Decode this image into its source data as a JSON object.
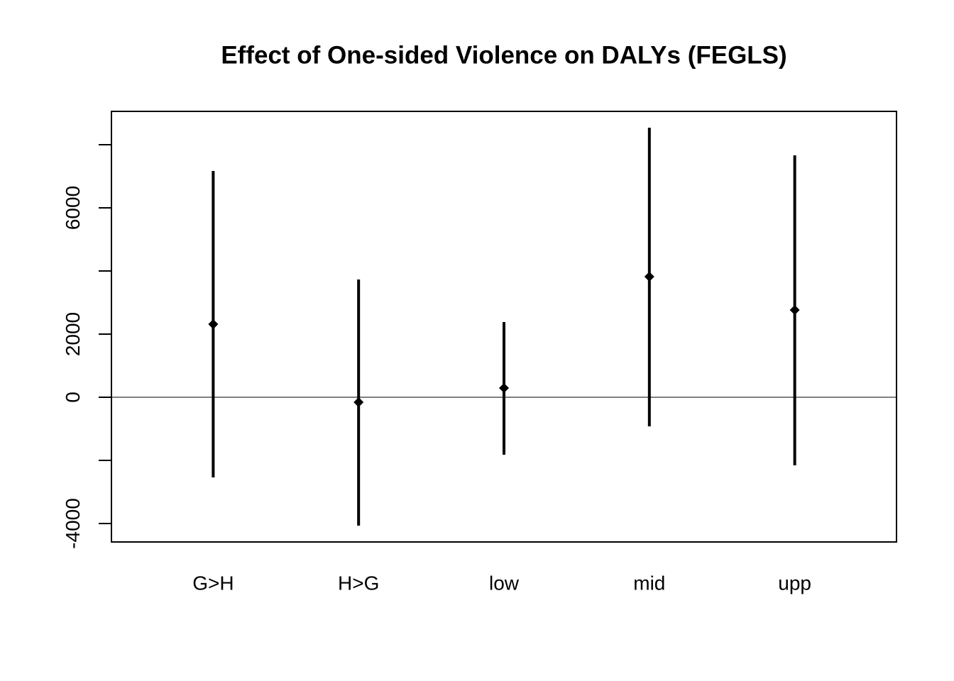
{
  "chart_data": {
    "type": "errorbar",
    "title": "Effect of One-sided Violence on DALYs (FEGLS)",
    "categories": [
      "G>H",
      "H>G",
      "low",
      "mid",
      "upp"
    ],
    "values": [
      2315,
      -157,
      292,
      3820,
      2764
    ],
    "lower": [
      -2539,
      -4067,
      -1820,
      -921,
      -2157
    ],
    "upper": [
      7168,
      3730,
      2382,
      8539,
      7662
    ],
    "color": "#000000",
    "ylim": [
      -4584,
      9056
    ],
    "yticks": [
      -4000,
      {
        "value": -2000,
        "label": null
      },
      0,
      2000,
      {
        "value": 4000,
        "label": null
      },
      6000,
      {
        "value": 8000,
        "label": null
      }
    ],
    "hline": 0,
    "grid": false
  }
}
